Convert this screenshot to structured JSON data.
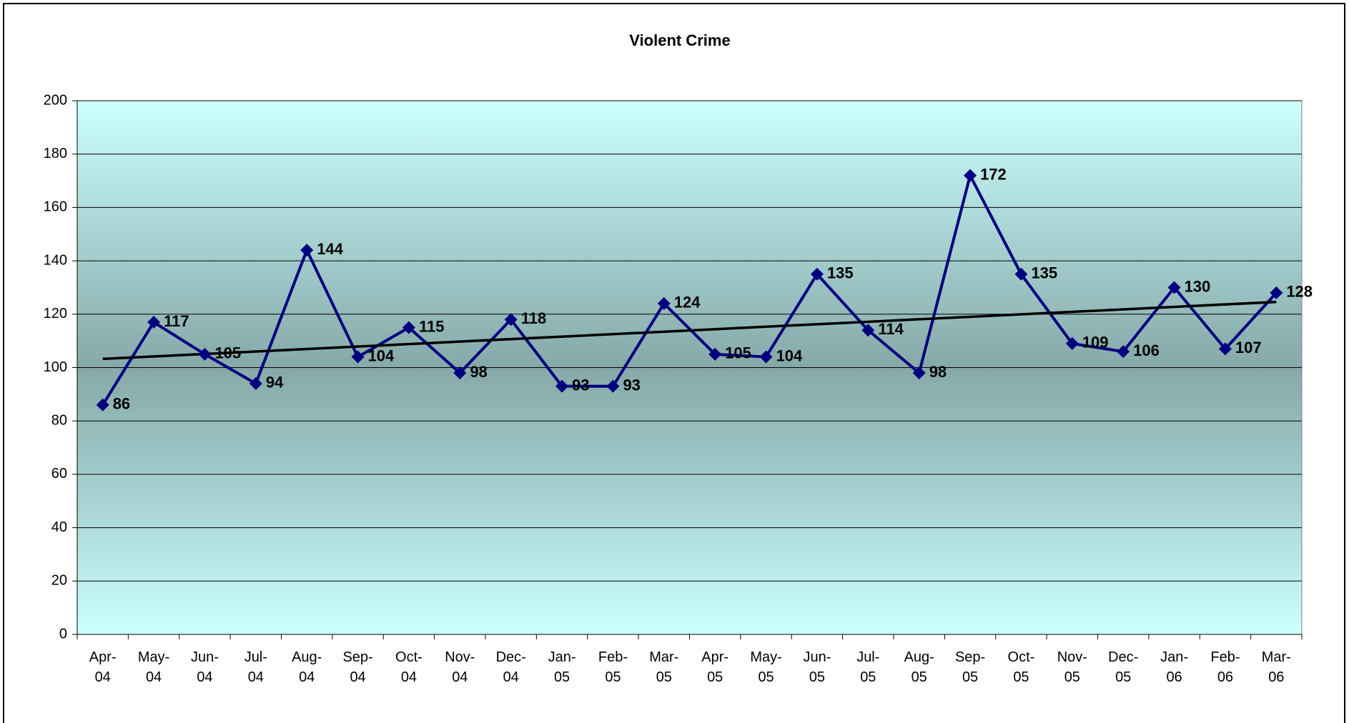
{
  "chart_data": {
    "type": "line",
    "title": "Violent Crime",
    "categories": [
      "Apr-04",
      "May-04",
      "Jun-04",
      "Jul-04",
      "Aug-04",
      "Sep-04",
      "Oct-04",
      "Nov-04",
      "Dec-04",
      "Jan-05",
      "Feb-05",
      "Mar-05",
      "Apr-05",
      "May-05",
      "Jun-05",
      "Jul-05",
      "Aug-05",
      "Sep-05",
      "Oct-05",
      "Nov-05",
      "Dec-05",
      "Jan-06",
      "Feb-06",
      "Mar-06"
    ],
    "series": [
      {
        "name": "Violent Crime",
        "color": "#000080",
        "values": [
          86,
          117,
          105,
          94,
          144,
          104,
          115,
          98,
          118,
          93,
          93,
          124,
          105,
          104,
          135,
          114,
          98,
          172,
          135,
          109,
          106,
          130,
          107,
          128
        ]
      }
    ],
    "ylim": [
      0,
      200
    ],
    "yticks": [
      0,
      20,
      40,
      60,
      80,
      100,
      120,
      140,
      160,
      180,
      200
    ],
    "grid": true,
    "trendline": true,
    "trendline_color": "#000000"
  }
}
